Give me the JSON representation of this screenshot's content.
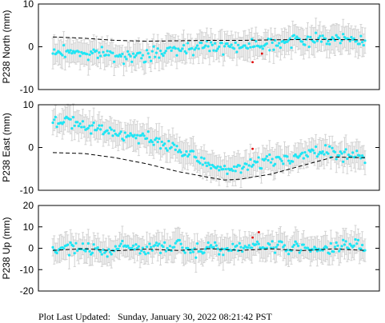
{
  "footer": {
    "label": "Plot Last Updated:",
    "timestamp": "Sunday, January 30, 2022 08:21:42 PST"
  },
  "colors": {
    "points": "#1ee6f5",
    "error_bars": "#d3d3d3",
    "model_line": "#000000",
    "outliers": "#e00000"
  },
  "chart_data": [
    {
      "type": "scatter",
      "ylabel": "P238 North (mm)",
      "ylim": [
        -10,
        10
      ],
      "yticks": [
        -10,
        0,
        10
      ],
      "points": [
        {
          "x": 0.0,
          "y": -1.5
        },
        {
          "x": 0.04,
          "y": -1.0
        },
        {
          "x": 0.08,
          "y": -1.2
        },
        {
          "x": 0.12,
          "y": -1.8
        },
        {
          "x": 0.16,
          "y": -1.4
        },
        {
          "x": 0.2,
          "y": -2.0
        },
        {
          "x": 0.24,
          "y": -2.2
        },
        {
          "x": 0.28,
          "y": -2.6
        },
        {
          "x": 0.32,
          "y": -1.8
        },
        {
          "x": 0.36,
          "y": -1.0
        },
        {
          "x": 0.4,
          "y": -0.5
        },
        {
          "x": 0.44,
          "y": -0.2
        },
        {
          "x": 0.48,
          "y": 0.0
        },
        {
          "x": 0.52,
          "y": 0.2
        },
        {
          "x": 0.56,
          "y": 0.1
        },
        {
          "x": 0.6,
          "y": 0.3
        },
        {
          "x": 0.64,
          "y": 0.5
        },
        {
          "x": 0.68,
          "y": 0.7
        },
        {
          "x": 0.72,
          "y": 0.9
        },
        {
          "x": 0.76,
          "y": 1.2
        },
        {
          "x": 0.8,
          "y": 1.6
        },
        {
          "x": 0.84,
          "y": 1.8
        },
        {
          "x": 0.88,
          "y": 1.9
        },
        {
          "x": 0.92,
          "y": 2.0
        },
        {
          "x": 0.96,
          "y": 1.5
        },
        {
          "x": 1.0,
          "y": 1.2
        }
      ],
      "model": [
        {
          "x": 0.0,
          "y": 2.3
        },
        {
          "x": 0.1,
          "y": 2.0
        },
        {
          "x": 0.2,
          "y": 1.5
        },
        {
          "x": 0.3,
          "y": 1.3
        },
        {
          "x": 0.4,
          "y": 1.4
        },
        {
          "x": 0.5,
          "y": 1.5
        },
        {
          "x": 0.6,
          "y": 1.5
        },
        {
          "x": 0.7,
          "y": 1.6
        },
        {
          "x": 0.8,
          "y": 1.7
        },
        {
          "x": 0.9,
          "y": 1.7
        },
        {
          "x": 1.0,
          "y": 1.6
        }
      ],
      "outliers": [
        {
          "x": 0.64,
          "y": -3.6
        },
        {
          "x": 0.67,
          "y": -1.6
        }
      ]
    },
    {
      "type": "scatter",
      "ylabel": "P238 East (mm)",
      "ylim": [
        -10,
        10
      ],
      "yticks": [
        -10,
        0,
        10
      ],
      "points": [
        {
          "x": 0.0,
          "y": 6.5
        },
        {
          "x": 0.04,
          "y": 6.0
        },
        {
          "x": 0.08,
          "y": 5.4
        },
        {
          "x": 0.12,
          "y": 4.8
        },
        {
          "x": 0.16,
          "y": 4.2
        },
        {
          "x": 0.2,
          "y": 3.5
        },
        {
          "x": 0.24,
          "y": 2.9
        },
        {
          "x": 0.28,
          "y": 2.4
        },
        {
          "x": 0.32,
          "y": 1.6
        },
        {
          "x": 0.36,
          "y": 0.6
        },
        {
          "x": 0.4,
          "y": -0.5
        },
        {
          "x": 0.44,
          "y": -2.0
        },
        {
          "x": 0.48,
          "y": -3.5
        },
        {
          "x": 0.52,
          "y": -4.5
        },
        {
          "x": 0.56,
          "y": -5.0
        },
        {
          "x": 0.6,
          "y": -4.8
        },
        {
          "x": 0.64,
          "y": -4.0
        },
        {
          "x": 0.68,
          "y": -3.2
        },
        {
          "x": 0.72,
          "y": -2.8
        },
        {
          "x": 0.76,
          "y": -2.4
        },
        {
          "x": 0.8,
          "y": -1.8
        },
        {
          "x": 0.84,
          "y": -1.2
        },
        {
          "x": 0.88,
          "y": -1.0
        },
        {
          "x": 0.92,
          "y": -1.4
        },
        {
          "x": 0.96,
          "y": -2.0
        },
        {
          "x": 1.0,
          "y": -3.0
        }
      ],
      "model": [
        {
          "x": 0.0,
          "y": -1.2
        },
        {
          "x": 0.1,
          "y": -1.4
        },
        {
          "x": 0.2,
          "y": -2.4
        },
        {
          "x": 0.3,
          "y": -3.8
        },
        {
          "x": 0.4,
          "y": -5.6
        },
        {
          "x": 0.5,
          "y": -7.0
        },
        {
          "x": 0.55,
          "y": -7.6
        },
        {
          "x": 0.6,
          "y": -7.4
        },
        {
          "x": 0.7,
          "y": -6.2
        },
        {
          "x": 0.8,
          "y": -4.2
        },
        {
          "x": 0.9,
          "y": -2.2
        },
        {
          "x": 1.0,
          "y": -2.4
        }
      ],
      "outliers": [
        {
          "x": 0.64,
          "y": -0.3
        }
      ]
    },
    {
      "type": "scatter",
      "ylabel": "P238 Up (mm)",
      "ylim": [
        -20,
        20
      ],
      "yticks": [
        -20,
        -10,
        0,
        10,
        20
      ],
      "points": [
        {
          "x": 0.0,
          "y": -1.0
        },
        {
          "x": 0.04,
          "y": 0.5
        },
        {
          "x": 0.08,
          "y": -0.5
        },
        {
          "x": 0.12,
          "y": 1.0
        },
        {
          "x": 0.16,
          "y": -2.0
        },
        {
          "x": 0.2,
          "y": 0.0
        },
        {
          "x": 0.24,
          "y": 1.5
        },
        {
          "x": 0.28,
          "y": -1.0
        },
        {
          "x": 0.32,
          "y": 0.5
        },
        {
          "x": 0.36,
          "y": -0.5
        },
        {
          "x": 0.4,
          "y": 2.0
        },
        {
          "x": 0.44,
          "y": -1.5
        },
        {
          "x": 0.48,
          "y": 0.0
        },
        {
          "x": 0.52,
          "y": 1.0
        },
        {
          "x": 0.56,
          "y": -1.0
        },
        {
          "x": 0.6,
          "y": 0.5
        },
        {
          "x": 0.64,
          "y": 1.5
        },
        {
          "x": 0.68,
          "y": 0.0
        },
        {
          "x": 0.72,
          "y": 2.0
        },
        {
          "x": 0.76,
          "y": -0.5
        },
        {
          "x": 0.8,
          "y": 1.0
        },
        {
          "x": 0.84,
          "y": 0.0
        },
        {
          "x": 0.88,
          "y": -1.0
        },
        {
          "x": 0.92,
          "y": 0.5
        },
        {
          "x": 0.96,
          "y": 1.5
        },
        {
          "x": 1.0,
          "y": 0.0
        }
      ],
      "model": [
        {
          "x": 0.0,
          "y": -1.0
        },
        {
          "x": 0.1,
          "y": -0.2
        },
        {
          "x": 0.2,
          "y": -1.2
        },
        {
          "x": 0.3,
          "y": -0.4
        },
        {
          "x": 0.4,
          "y": -1.0
        },
        {
          "x": 0.5,
          "y": -0.2
        },
        {
          "x": 0.6,
          "y": -1.0
        },
        {
          "x": 0.7,
          "y": -0.3
        },
        {
          "x": 0.8,
          "y": -1.1
        },
        {
          "x": 0.9,
          "y": -0.3
        },
        {
          "x": 1.0,
          "y": -1.0
        }
      ],
      "outliers": [
        {
          "x": 0.66,
          "y": 7.5
        },
        {
          "x": 0.64,
          "y": 5.0
        }
      ]
    }
  ]
}
